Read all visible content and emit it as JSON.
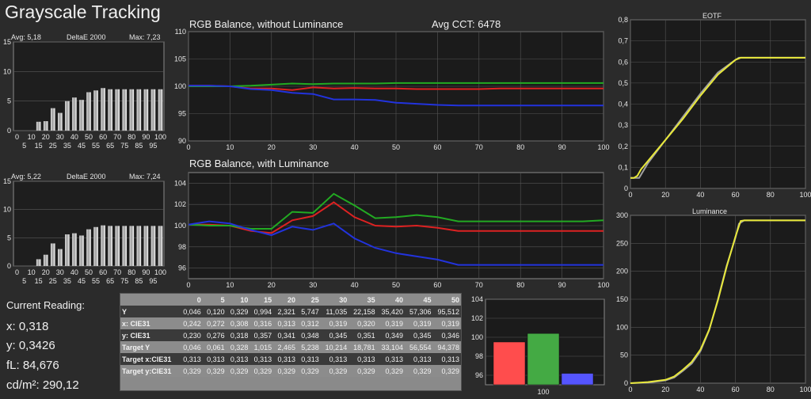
{
  "app": {
    "title": "Grayscale Tracking"
  },
  "delta_top": {
    "avg": "Avg: 5,18",
    "metric": "DeltaE 2000",
    "max": "Max: 7,23",
    "y_ticks": [
      "15",
      "10",
      "5",
      "0"
    ],
    "x_ticks": [
      "0",
      "10",
      "20",
      "30",
      "40",
      "50",
      "60",
      "70",
      "80",
      "90",
      "100"
    ],
    "x_ticks2": [
      "5",
      "15",
      "25",
      "35",
      "45",
      "55",
      "65",
      "75",
      "85",
      "95"
    ]
  },
  "delta_bottom": {
    "avg": "Avg: 5,22",
    "metric": "DeltaE 2000",
    "max": "Max: 7,24",
    "y_ticks": [
      "15",
      "10",
      "5",
      "0"
    ],
    "x_ticks": [
      "0",
      "10",
      "20",
      "30",
      "40",
      "50",
      "60",
      "70",
      "80",
      "90",
      "100"
    ],
    "x_ticks2": [
      "5",
      "15",
      "25",
      "35",
      "45",
      "55",
      "65",
      "75",
      "85",
      "95"
    ]
  },
  "rgb_top": {
    "title": "RGB Balance, without Luminance",
    "cct": "Avg CCT: 6478"
  },
  "rgb_bottom": {
    "title": "RGB Balance, with Luminance"
  },
  "eotf": {
    "title": "EOTF"
  },
  "luminance": {
    "title": "Luminance"
  },
  "current": {
    "header": "Current Reading:",
    "x": "x: 0,318",
    "y": "y: 0,3426",
    "fl": "fL: 84,676",
    "cd": "cd/m²: 290,12"
  },
  "table": {
    "columns": [
      "",
      "0",
      "5",
      "10",
      "15",
      "20",
      "25",
      "30",
      "35",
      "40",
      "45",
      "50"
    ],
    "rows": [
      {
        "label": "Y",
        "values": [
          "0,046",
          "0,120",
          "0,329",
          "0,994",
          "2,321",
          "5,747",
          "11,035",
          "22,158",
          "35,420",
          "57,306",
          "95,512"
        ]
      },
      {
        "label": "x: CIE31",
        "values": [
          "0,242",
          "0,272",
          "0,308",
          "0,316",
          "0,313",
          "0,312",
          "0,319",
          "0,320",
          "0,319",
          "0,319",
          "0,319"
        ]
      },
      {
        "label": "y: CIE31",
        "values": [
          "0,230",
          "0,276",
          "0,318",
          "0,357",
          "0,341",
          "0,348",
          "0,345",
          "0,351",
          "0,349",
          "0,345",
          "0,346"
        ]
      },
      {
        "label": "Target Y",
        "values": [
          "0,046",
          "0,061",
          "0,328",
          "1,015",
          "2,465",
          "5,238",
          "10,214",
          "18,781",
          "33,104",
          "56,554",
          "94,378"
        ]
      },
      {
        "label": "Target x:CIE31",
        "values": [
          "0,313",
          "0,313",
          "0,313",
          "0,313",
          "0,313",
          "0,313",
          "0,313",
          "0,313",
          "0,313",
          "0,313",
          "0,313"
        ]
      },
      {
        "label": "Target y:CIE31",
        "values": [
          "0,329",
          "0,329",
          "0,329",
          "0,329",
          "0,329",
          "0,329",
          "0,329",
          "0,329",
          "0,329",
          "0,329",
          "0,329"
        ]
      }
    ]
  },
  "colors": {
    "red": "#dd2222",
    "green": "#22aa22",
    "blue": "#2233dd",
    "yellow": "#e8e83a",
    "gray": "#9a9a9a"
  },
  "chart_data": [
    {
      "type": "bar",
      "name": "deltaE-top",
      "categories": [
        0,
        5,
        10,
        15,
        20,
        25,
        30,
        35,
        40,
        45,
        50,
        55,
        60,
        65,
        70,
        75,
        80,
        85,
        90,
        95,
        100
      ],
      "values": [
        0,
        0,
        0,
        1.5,
        1.6,
        3.8,
        3.0,
        5.0,
        5.6,
        5.2,
        6.5,
        6.8,
        7.2,
        7.0,
        7.0,
        7.0,
        7.0,
        7.0,
        7.0,
        7.0,
        7.0
      ],
      "ylim": [
        0,
        15
      ]
    },
    {
      "type": "bar",
      "name": "deltaE-bottom",
      "categories": [
        0,
        5,
        10,
        15,
        20,
        25,
        30,
        35,
        40,
        45,
        50,
        55,
        60,
        65,
        70,
        75,
        80,
        85,
        90,
        95,
        100
      ],
      "values": [
        0,
        0,
        0,
        1.2,
        2.0,
        4.0,
        3.0,
        5.6,
        5.8,
        5.4,
        6.5,
        6.9,
        7.2,
        7.1,
        7.1,
        7.1,
        7.1,
        7.1,
        7.1,
        7.1,
        7.1
      ],
      "ylim": [
        0,
        15
      ]
    },
    {
      "type": "line",
      "name": "rgb-without-luminance",
      "x": [
        0,
        5,
        10,
        15,
        20,
        25,
        30,
        35,
        40,
        45,
        50,
        55,
        60,
        65,
        70,
        75,
        80,
        85,
        90,
        95,
        100
      ],
      "ylim": [
        90,
        110
      ],
      "xlim": [
        0,
        100
      ],
      "series": [
        {
          "color": "red",
          "values": [
            100.1,
            100.1,
            100.0,
            99.6,
            99.6,
            99.3,
            99.8,
            99.6,
            99.7,
            99.6,
            99.6,
            99.5,
            99.5,
            99.5,
            99.5,
            99.6,
            99.6,
            99.6,
            99.6,
            99.6,
            99.6
          ]
        },
        {
          "color": "green",
          "values": [
            100.0,
            100.0,
            100.0,
            100.1,
            100.3,
            100.5,
            100.4,
            100.5,
            100.5,
            100.5,
            100.6,
            100.6,
            100.6,
            100.6,
            100.6,
            100.6,
            100.6,
            100.6,
            100.6,
            100.6,
            100.6
          ]
        },
        {
          "color": "blue",
          "values": [
            100.1,
            100.1,
            100.0,
            99.5,
            99.3,
            98.8,
            98.6,
            97.6,
            97.6,
            97.5,
            97.0,
            96.8,
            96.6,
            96.5,
            96.5,
            96.5,
            96.5,
            96.5,
            96.5,
            96.5,
            96.5
          ]
        }
      ]
    },
    {
      "type": "line",
      "name": "rgb-with-luminance",
      "x": [
        0,
        5,
        10,
        15,
        20,
        25,
        30,
        35,
        40,
        45,
        50,
        55,
        60,
        65,
        70,
        75,
        80,
        85,
        90,
        95,
        100
      ],
      "ylim": [
        95,
        105
      ],
      "xlim": [
        0,
        100
      ],
      "series": [
        {
          "color": "red",
          "values": [
            100.1,
            100.1,
            100.0,
            99.5,
            99.3,
            100.5,
            100.9,
            102.2,
            100.8,
            100.0,
            99.9,
            100.0,
            99.8,
            99.5,
            99.5,
            99.5,
            99.5,
            99.5,
            99.5,
            99.5,
            99.5
          ]
        },
        {
          "color": "green",
          "values": [
            100.1,
            100.0,
            100.0,
            99.7,
            99.7,
            101.3,
            101.2,
            103.0,
            101.9,
            100.7,
            100.8,
            101.0,
            100.8,
            100.4,
            100.4,
            100.4,
            100.4,
            100.4,
            100.4,
            100.4,
            100.5
          ]
        },
        {
          "color": "blue",
          "values": [
            100.1,
            100.4,
            100.2,
            99.6,
            99.1,
            99.9,
            99.6,
            100.2,
            98.8,
            97.9,
            97.4,
            97.1,
            96.8,
            96.3,
            96.3,
            96.3,
            96.3,
            96.3,
            96.3,
            96.3,
            96.3
          ]
        }
      ]
    },
    {
      "type": "bar",
      "name": "current-rgb",
      "categories": [
        "100"
      ],
      "series": [
        {
          "color": "red",
          "values": [
            99.5
          ]
        },
        {
          "color": "green",
          "values": [
            100.4
          ]
        },
        {
          "color": "blue",
          "values": [
            96.2
          ]
        }
      ],
      "ylim": [
        95,
        104
      ]
    },
    {
      "type": "line",
      "name": "eotf",
      "title": "EOTF",
      "xlim": [
        0,
        100
      ],
      "ylim": [
        0,
        0.8
      ],
      "series": [
        {
          "color": "gray",
          "x": [
            0,
            3,
            5,
            10,
            20,
            30,
            40,
            50,
            60,
            62,
            65,
            100
          ],
          "y": [
            0.05,
            0.05,
            0.05,
            0.12,
            0.23,
            0.34,
            0.45,
            0.55,
            0.61,
            0.62,
            0.62,
            0.62
          ]
        },
        {
          "color": "yellow",
          "x": [
            0,
            2,
            4,
            6,
            10,
            20,
            30,
            40,
            50,
            60,
            63,
            100
          ],
          "y": [
            0.05,
            0.05,
            0.06,
            0.09,
            0.13,
            0.23,
            0.33,
            0.44,
            0.54,
            0.61,
            0.62,
            0.62
          ]
        }
      ]
    },
    {
      "type": "line",
      "name": "luminance",
      "title": "Luminance",
      "xlim": [
        0,
        100
      ],
      "ylim": [
        0,
        300
      ],
      "series": [
        {
          "color": "gray",
          "x": [
            0,
            10,
            20,
            25,
            30,
            35,
            40,
            45,
            50,
            55,
            60,
            62,
            65,
            100
          ],
          "y": [
            0,
            1,
            5,
            10,
            22,
            35,
            57,
            95,
            150,
            210,
            260,
            285,
            291,
            291
          ]
        },
        {
          "color": "yellow",
          "x": [
            0,
            10,
            20,
            25,
            30,
            35,
            40,
            45,
            50,
            55,
            60,
            63,
            65,
            100
          ],
          "y": [
            0,
            2,
            6,
            12,
            24,
            38,
            60,
            96,
            148,
            208,
            262,
            290,
            291,
            291
          ]
        }
      ]
    }
  ]
}
